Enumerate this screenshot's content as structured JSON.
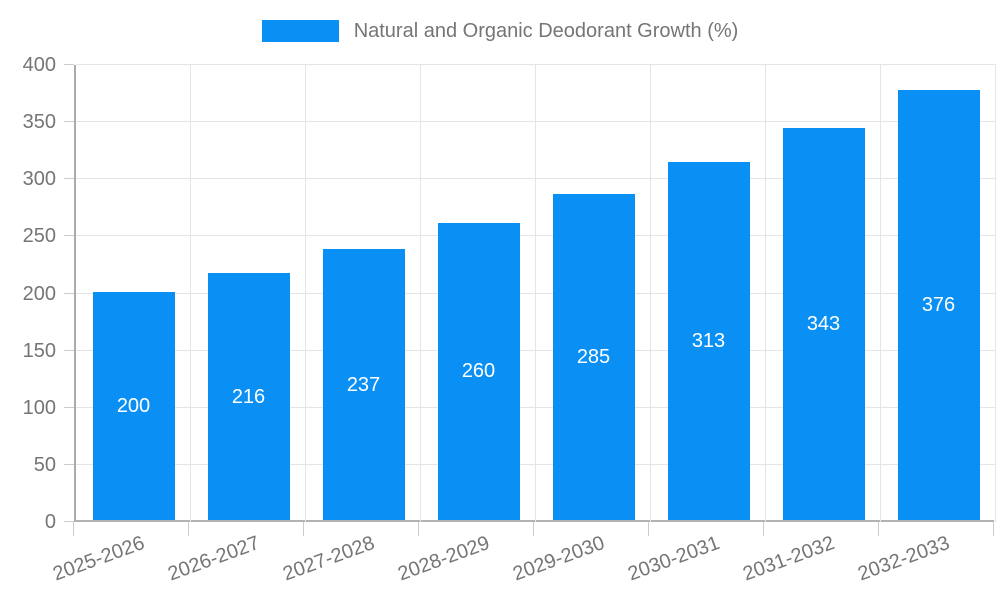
{
  "chart_data": {
    "type": "bar",
    "title": "Natural and Organic Deodorant Growth (%)",
    "legend": {
      "label": "Natural and Organic Deodorant Growth (%)",
      "position": "top-center"
    },
    "categories": [
      "2025-2026",
      "2026-2027",
      "2027-2028",
      "2028-2029",
      "2029-2030",
      "2030-2031",
      "2031-2032",
      "2032-2033"
    ],
    "values": [
      200,
      216,
      237,
      260,
      285,
      313,
      343,
      376
    ],
    "value_labels": [
      "200",
      "216",
      "237",
      "260",
      "285",
      "313",
      "343",
      "376"
    ],
    "xlabel": "",
    "ylabel": "",
    "ylim": [
      0,
      400
    ],
    "ytick_step": 50,
    "yticks": [
      "0",
      "50",
      "100",
      "150",
      "200",
      "250",
      "300",
      "350",
      "400"
    ],
    "grid": "on",
    "colors": {
      "bar_fill": "#0a90f5",
      "bar_value_text": "#ffffff",
      "axis_text": "#757575",
      "gridline": "#e5e5e5",
      "axis_line": "#ababab",
      "tick": "#cccccc",
      "background": "#ffffff"
    }
  }
}
